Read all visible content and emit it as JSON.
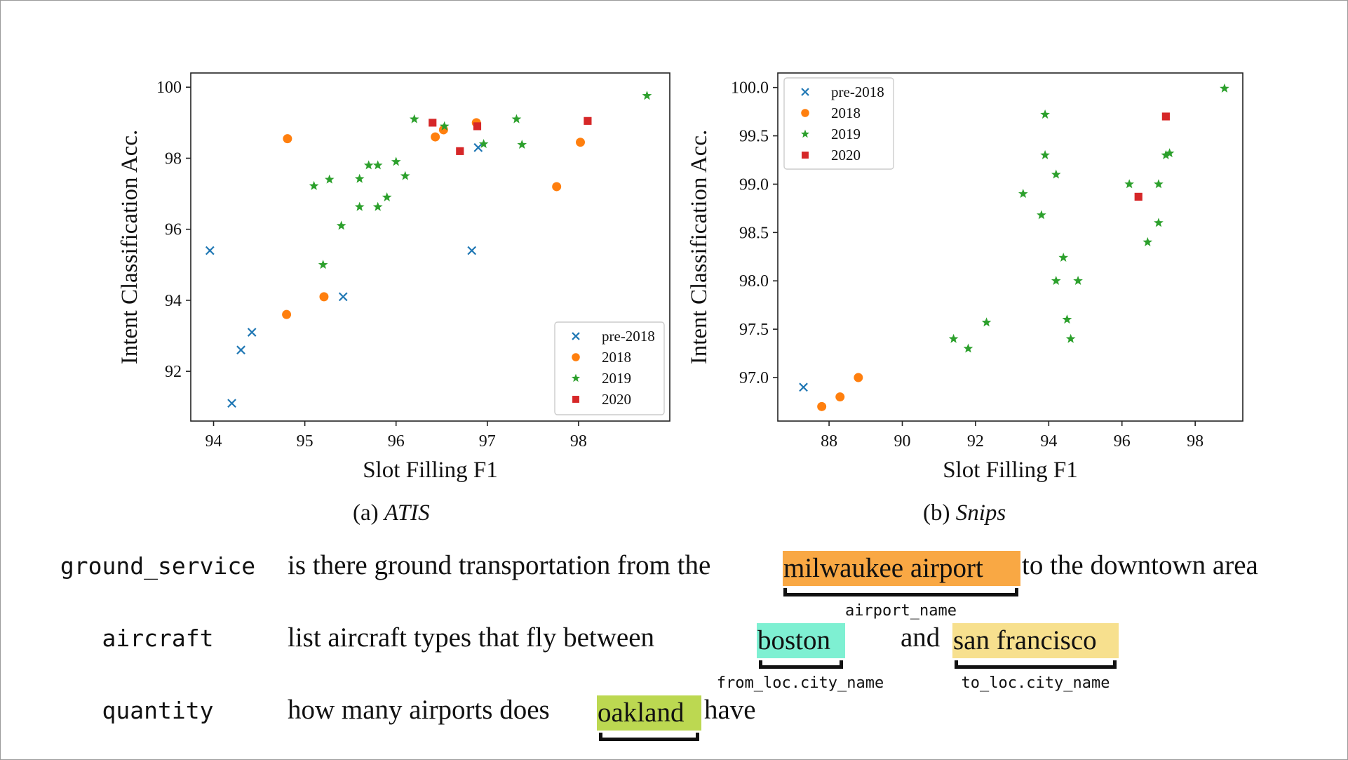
{
  "chart_data": [
    {
      "type": "scatter",
      "caption_prefix": "(a)",
      "caption_name": "ATIS",
      "xlabel": "Slot Filling F1",
      "ylabel": "Intent Classification Acc.",
      "xlim": [
        93.75,
        99.0
      ],
      "ylim": [
        90.6,
        100.4
      ],
      "xticks": [
        94,
        95,
        96,
        97,
        98
      ],
      "yticks": [
        92,
        94,
        96,
        98,
        100
      ],
      "ytick_labels": [
        "92",
        "94",
        "96",
        "98",
        "100"
      ],
      "legend_position": "lower-right",
      "series": [
        {
          "name": "pre-2018",
          "marker": "x",
          "color": "#1f77b4",
          "points": [
            [
              93.96,
              95.4
            ],
            [
              94.2,
              91.1
            ],
            [
              94.3,
              92.6
            ],
            [
              94.42,
              93.1
            ],
            [
              95.42,
              94.1
            ],
            [
              96.83,
              95.4
            ],
            [
              96.9,
              98.3
            ]
          ]
        },
        {
          "name": "2018",
          "marker": "circle",
          "color": "#ff7f0e",
          "points": [
            [
              94.81,
              98.55
            ],
            [
              94.8,
              93.6
            ],
            [
              95.21,
              94.1
            ],
            [
              96.43,
              98.6
            ],
            [
              96.52,
              98.8
            ],
            [
              96.88,
              99.0
            ],
            [
              97.76,
              97.2
            ],
            [
              98.02,
              98.45
            ]
          ]
        },
        {
          "name": "2019",
          "marker": "star",
          "color": "#2ca02c",
          "points": [
            [
              98.75,
              99.76
            ],
            [
              96.2,
              99.1
            ],
            [
              97.32,
              99.1
            ],
            [
              96.53,
              98.9
            ],
            [
              96.96,
              98.4
            ],
            [
              97.38,
              98.38
            ],
            [
              96.0,
              97.9
            ],
            [
              95.7,
              97.8
            ],
            [
              95.8,
              97.8
            ],
            [
              96.1,
              97.5
            ],
            [
              95.6,
              97.42
            ],
            [
              95.27,
              97.4
            ],
            [
              95.1,
              97.22
            ],
            [
              95.9,
              96.9
            ],
            [
              95.6,
              96.63
            ],
            [
              95.8,
              96.63
            ],
            [
              95.4,
              96.1
            ],
            [
              95.2,
              95.0
            ]
          ]
        },
        {
          "name": "2020",
          "marker": "square",
          "color": "#d62728",
          "points": [
            [
              96.4,
              99.0
            ],
            [
              96.89,
              98.9
            ],
            [
              96.7,
              98.2
            ],
            [
              98.1,
              99.05
            ]
          ]
        }
      ]
    },
    {
      "type": "scatter",
      "caption_prefix": "(b)",
      "caption_name": "Snips",
      "xlabel": "Slot Filling F1",
      "ylabel": "Intent Classification Acc.",
      "xlim": [
        86.6,
        99.3
      ],
      "ylim": [
        96.55,
        100.15
      ],
      "xticks": [
        88,
        90,
        92,
        94,
        96,
        98
      ],
      "yticks": [
        97.0,
        97.5,
        98.0,
        98.5,
        99.0,
        99.5,
        100.0
      ],
      "ytick_labels": [
        "97.0",
        "97.5",
        "98.0",
        "98.5",
        "99.0",
        "99.5",
        "100.0"
      ],
      "legend_position": "upper-left",
      "series": [
        {
          "name": "pre-2018",
          "marker": "x",
          "color": "#1f77b4",
          "points": [
            [
              87.3,
              96.9
            ]
          ]
        },
        {
          "name": "2018",
          "marker": "circle",
          "color": "#ff7f0e",
          "points": [
            [
              87.8,
              96.7
            ],
            [
              88.3,
              96.8
            ],
            [
              88.8,
              97.0
            ]
          ]
        },
        {
          "name": "2019",
          "marker": "star",
          "color": "#2ca02c",
          "points": [
            [
              98.8,
              99.99
            ],
            [
              93.9,
              99.72
            ],
            [
              93.9,
              99.3
            ],
            [
              94.2,
              99.1
            ],
            [
              93.3,
              98.9
            ],
            [
              93.8,
              98.68
            ],
            [
              94.4,
              98.24
            ],
            [
              94.2,
              98.0
            ],
            [
              94.8,
              98.0
            ],
            [
              94.5,
              97.6
            ],
            [
              94.6,
              97.4
            ],
            [
              92.3,
              97.57
            ],
            [
              91.4,
              97.4
            ],
            [
              91.8,
              97.3
            ],
            [
              96.2,
              99.0
            ],
            [
              97.0,
              99.0
            ],
            [
              97.2,
              99.3
            ],
            [
              97.3,
              99.32
            ],
            [
              97.0,
              98.6
            ],
            [
              96.7,
              98.4
            ]
          ]
        },
        {
          "name": "2020",
          "marker": "square",
          "color": "#d62728",
          "points": [
            [
              97.2,
              99.7
            ],
            [
              96.45,
              98.87
            ]
          ]
        }
      ]
    }
  ],
  "examples": [
    {
      "intent": "ground_service",
      "segments": [
        {
          "text": "is there ground transportation from the"
        },
        {
          "text": "milwaukee airport",
          "slot": "airport_name",
          "color": "#f9a844"
        },
        {
          "text": "to the downtown area"
        }
      ]
    },
    {
      "intent": "aircraft",
      "segments": [
        {
          "text": "list aircraft types that fly between"
        },
        {
          "text": "boston",
          "slot": "from_loc.city_name",
          "color": "#7ef0d2"
        },
        {
          "text": "and"
        },
        {
          "text": "san francisco",
          "slot": "to_loc.city_name",
          "color": "#f7e08e"
        }
      ]
    },
    {
      "intent": "quantity",
      "segments": [
        {
          "text": "how many airports does"
        },
        {
          "text": "oakland",
          "slot": "",
          "color": "#bcd851"
        },
        {
          "text": "have"
        }
      ]
    }
  ]
}
